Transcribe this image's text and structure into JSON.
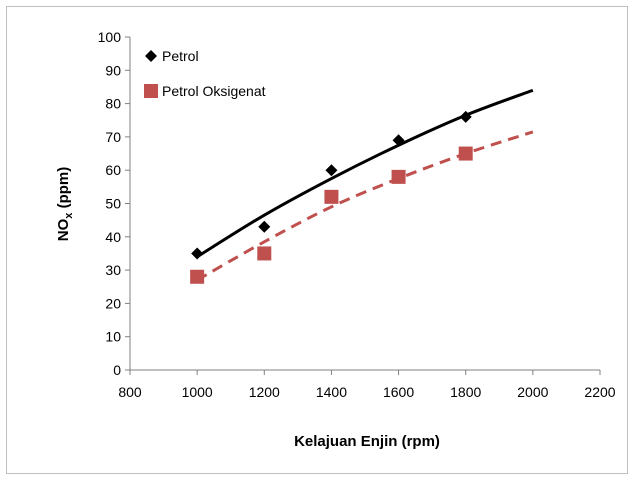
{
  "chart_data": {
    "type": "scatter",
    "title": "",
    "xlabel": "Kelajuan Enjin (rpm)",
    "ylabel_main": "NO",
    "ylabel_sub": "x",
    "ylabel_unit": " (ppm)",
    "xlim": [
      800,
      2200
    ],
    "ylim": [
      0,
      100
    ],
    "xticks": [
      800,
      1000,
      1200,
      1400,
      1600,
      1800,
      2000,
      2200
    ],
    "yticks": [
      0,
      10,
      20,
      30,
      40,
      50,
      60,
      70,
      80,
      90,
      100
    ],
    "grid": false,
    "legend_position": "top-left",
    "series": [
      {
        "name": "Petrol",
        "marker": "diamond",
        "color": "#000000",
        "x": [
          1000,
          1200,
          1400,
          1600,
          1800
        ],
        "y": [
          35,
          43,
          60,
          69,
          76
        ],
        "trendline": {
          "style": "solid",
          "color": "#000000",
          "x": [
            1000,
            1200,
            1400,
            1600,
            1800,
            2000
          ],
          "y": [
            34,
            46.5,
            57.5,
            67.5,
            76.5,
            84
          ]
        }
      },
      {
        "name": "Petrol Oksigenat",
        "marker": "square",
        "color": "#c0504d",
        "x": [
          1000,
          1200,
          1400,
          1600,
          1800
        ],
        "y": [
          28,
          35,
          52,
          58,
          65
        ],
        "trendline": {
          "style": "dashed",
          "color": "#c0504d",
          "x": [
            1000,
            1200,
            1400,
            1600,
            1800,
            2000
          ],
          "y": [
            27,
            38.5,
            49,
            57.5,
            65,
            71.5
          ]
        }
      }
    ]
  }
}
